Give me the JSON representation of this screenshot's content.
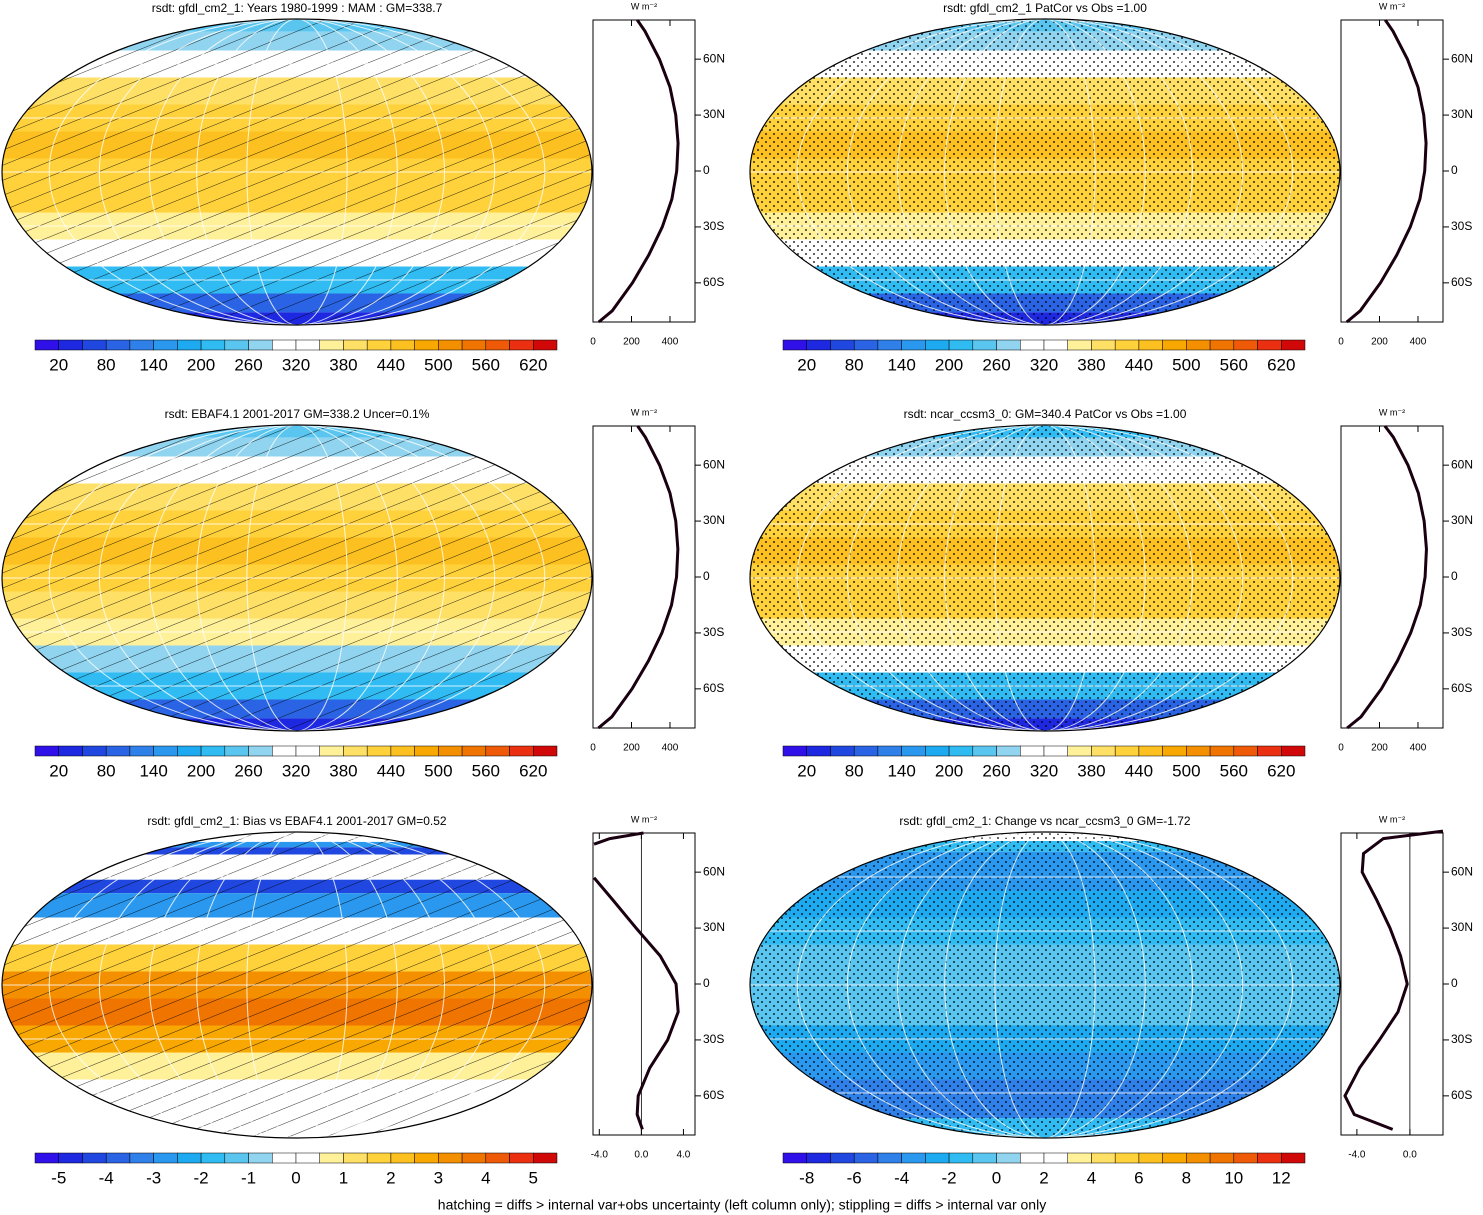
{
  "colorbar_colors": [
    "#3010e8",
    "#1e28e0",
    "#2048e0",
    "#2a64e4",
    "#3080ea",
    "#2a98ee",
    "#1eaaf0",
    "#30bcf2",
    "#5ac6f0",
    "#90d4f0",
    "#ffffff",
    "#ffffff",
    "#fff09a",
    "#ffe066",
    "#ffd23c",
    "#fcc020",
    "#f8a800",
    "#f49000",
    "#f07400",
    "#ee5a08",
    "#ea3010",
    "#d00808"
  ],
  "footnote": "hatching = diffs > internal var+obs uncertainty (left column only); stippling = diffs > internal var only",
  "panels": [
    {
      "title": "rsdt: gfdl_cm2_1: Years 1980-1999 : MAM : GM=338.7",
      "overlay": "hatching",
      "colorbar": {
        "clim": [
          -10,
          650
        ],
        "ticks": [
          20,
          80,
          140,
          200,
          260,
          320,
          380,
          440,
          500,
          560,
          620
        ]
      },
      "profile": {
        "unit": "W m⁻²",
        "lat": [
          81,
          75,
          60,
          45,
          30,
          15,
          0,
          -15,
          -30,
          -45,
          -60,
          -75,
          -81
        ],
        "values": [
          230,
          270,
          345,
          400,
          430,
          442,
          435,
          410,
          360,
          290,
          205,
          100,
          30
        ],
        "xlim": [
          0,
          530
        ],
        "xticks": [
          0,
          200,
          400
        ],
        "ylim": [
          -81,
          81
        ],
        "yticks": [
          {
            "value": 60,
            "label": "60N"
          },
          {
            "value": 30,
            "label": "30N"
          },
          0,
          {
            "value": -30,
            "label": "30S"
          },
          {
            "value": -60,
            "label": "60S"
          }
        ]
      }
    },
    {
      "title": "rsdt: gfdl_cm2_1 PatCor vs Obs =1.00",
      "overlay": "stippling",
      "colorbar": {
        "clim": [
          -10,
          650
        ],
        "ticks": [
          20,
          80,
          140,
          200,
          260,
          320,
          380,
          440,
          500,
          560,
          620
        ]
      },
      "profile": {
        "unit": "W m⁻²",
        "lat": [
          81,
          75,
          60,
          45,
          30,
          15,
          0,
          -15,
          -30,
          -45,
          -60,
          -75,
          -81
        ],
        "values": [
          230,
          270,
          345,
          400,
          430,
          442,
          435,
          410,
          360,
          290,
          205,
          100,
          30
        ],
        "xlim": [
          0,
          530
        ],
        "xticks": [
          0,
          200,
          400
        ],
        "ylim": [
          -81,
          81
        ],
        "yticks": [
          {
            "value": 60,
            "label": "60N"
          },
          {
            "value": 30,
            "label": "30N"
          },
          0,
          {
            "value": -30,
            "label": "30S"
          },
          {
            "value": -60,
            "label": "60S"
          }
        ]
      }
    },
    {
      "title": "rsdt: EBAF4.1 2001-2017 GM=338.2 Uncer=0.1%",
      "overlay": "hatching",
      "colorbar": {
        "clim": [
          -10,
          650
        ],
        "ticks": [
          20,
          80,
          140,
          200,
          260,
          320,
          380,
          440,
          500,
          560,
          620
        ]
      },
      "profile": {
        "unit": "W m⁻²",
        "lat": [
          81,
          75,
          60,
          45,
          30,
          15,
          0,
          -15,
          -30,
          -45,
          -60,
          -75,
          -81
        ],
        "values": [
          232,
          272,
          346,
          400,
          430,
          441,
          434,
          408,
          358,
          288,
          203,
          98,
          28
        ],
        "xlim": [
          0,
          530
        ],
        "xticks": [
          0,
          200,
          400
        ],
        "ylim": [
          -81,
          81
        ],
        "yticks": [
          {
            "value": 60,
            "label": "60N"
          },
          {
            "value": 30,
            "label": "30N"
          },
          0,
          {
            "value": -30,
            "label": "30S"
          },
          {
            "value": -60,
            "label": "60S"
          }
        ]
      }
    },
    {
      "title": "rsdt: ncar_ccsm3_0: GM=340.4 PatCor vs Obs =1.00",
      "overlay": "stippling",
      "colorbar": {
        "clim": [
          -10,
          650
        ],
        "ticks": [
          20,
          80,
          140,
          200,
          260,
          320,
          380,
          440,
          500,
          560,
          620
        ]
      },
      "profile": {
        "unit": "W m⁻²",
        "lat": [
          81,
          75,
          60,
          45,
          30,
          15,
          0,
          -15,
          -30,
          -45,
          -60,
          -75,
          -81
        ],
        "values": [
          228,
          272,
          348,
          402,
          432,
          444,
          437,
          412,
          362,
          293,
          210,
          104,
          32
        ],
        "xlim": [
          0,
          530
        ],
        "xticks": [
          0,
          200,
          400
        ],
        "ylim": [
          -81,
          81
        ],
        "yticks": [
          {
            "value": 60,
            "label": "60N"
          },
          {
            "value": 30,
            "label": "30N"
          },
          0,
          {
            "value": -30,
            "label": "30S"
          },
          {
            "value": -60,
            "label": "60S"
          }
        ]
      }
    },
    {
      "title": "rsdt: gfdl_cm2_1: Bias vs EBAF4.1 2001-2017 GM=0.52",
      "overlay": "hatching",
      "colorbar": {
        "clim": [
          -5.5,
          5.5
        ],
        "ticks": [
          -5,
          -4,
          -3,
          -2,
          -1,
          0,
          1,
          2,
          3,
          4,
          5
        ]
      },
      "profile": {
        "unit": "W m⁻²",
        "lat": [
          81,
          78,
          75,
          70,
          60,
          57,
          45,
          30,
          15,
          0,
          -15,
          -30,
          -45,
          -60,
          -70,
          -78
        ],
        "values": [
          0.2,
          -3,
          -4.5,
          null,
          null,
          -4.5,
          -2.7,
          -0.5,
          1.8,
          3.3,
          3.5,
          2.5,
          0.8,
          -0.3,
          -0.4,
          0.1
        ],
        "xlim": [
          -4.6,
          5.1
        ],
        "xticks": [
          {
            "value": -4,
            "label": "-4.0"
          },
          {
            "value": 0,
            "label": "0.0"
          },
          {
            "value": 4,
            "label": "4.0"
          }
        ],
        "ylim": [
          -81,
          81
        ],
        "yticks": [
          {
            "value": 60,
            "label": "60N"
          },
          {
            "value": 30,
            "label": "30N"
          },
          0,
          {
            "value": -30,
            "label": "30S"
          },
          {
            "value": -60,
            "label": "60S"
          }
        ]
      }
    },
    {
      "title": "rsdt: gfdl_cm2_1: Change vs ncar_ccsm3_0 GM=-1.72",
      "overlay": "stippling",
      "colorbar": {
        "clim": [
          -9,
          13
        ],
        "ticks": [
          -8,
          -6,
          -4,
          -2,
          0,
          2,
          4,
          6,
          8,
          10,
          12
        ]
      },
      "profile": {
        "unit": "W m⁻²",
        "lat": [
          82,
          78,
          70,
          60,
          45,
          30,
          15,
          0,
          -15,
          -30,
          -45,
          -60,
          -70,
          -78
        ],
        "values": [
          2.5,
          -2,
          -3.5,
          -3.6,
          -2.5,
          -1.5,
          -0.7,
          -0.2,
          -0.9,
          -2.3,
          -3.8,
          -4.9,
          -4.2,
          -1.3
        ],
        "xlim": [
          -5.2,
          2.5
        ],
        "xticks": [
          {
            "value": -4,
            "label": "-4.0"
          },
          {
            "value": 0,
            "label": "0.0"
          }
        ],
        "ylim": [
          -81,
          81
        ],
        "yticks": [
          {
            "value": 60,
            "label": "60N"
          },
          {
            "value": 30,
            "label": "30N"
          },
          0,
          {
            "value": -30,
            "label": "30S"
          },
          {
            "value": -60,
            "label": "60S"
          }
        ]
      }
    }
  ]
}
